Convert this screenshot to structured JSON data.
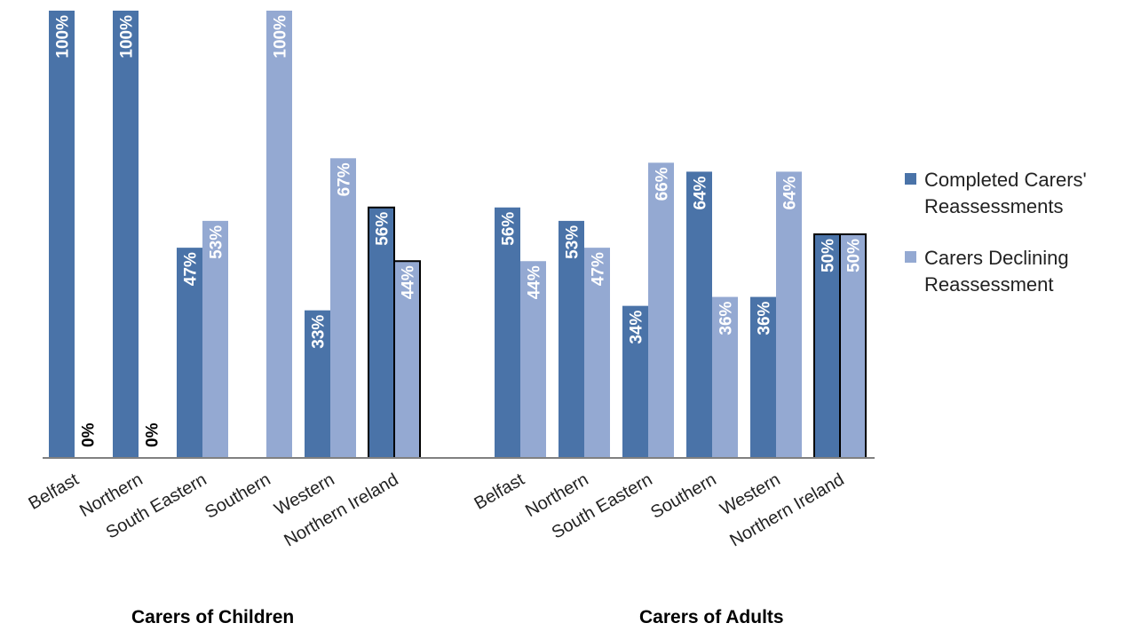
{
  "colors": {
    "completed": "#4a73a8",
    "declining": "#94a9d2",
    "axis": "#808080",
    "label_on_bar": "#ffffff",
    "label_zero": "#000000"
  },
  "chart_data": {
    "type": "bar",
    "y_range": [
      0,
      100
    ],
    "value_unit": "%",
    "grid": false,
    "legend_position": "right",
    "series": [
      {
        "name": "Completed Carers' Reassessments",
        "color": "#4a73a8"
      },
      {
        "name": "Carers Declining Reassessment",
        "color": "#94a9d2"
      }
    ],
    "groups": [
      {
        "title": "Carers of Children",
        "categories": [
          "Belfast",
          "Northern",
          "South Eastern",
          "Southern",
          "Western",
          "Northern Ireland"
        ],
        "completed": [
          100,
          100,
          47,
          null,
          33,
          56
        ],
        "declining": [
          0,
          0,
          53,
          100,
          67,
          44
        ],
        "completed_labels": [
          "100%",
          "100%",
          "47%",
          "",
          "33%",
          "56%"
        ],
        "declining_labels": [
          "0%",
          "0%",
          "53%",
          "100%",
          "67%",
          "44%"
        ]
      },
      {
        "title": "Carers of Adults",
        "categories": [
          "Belfast",
          "Northern",
          "South Eastern",
          "Southern",
          "Western",
          "Northern Ireland"
        ],
        "completed": [
          56,
          53,
          34,
          64,
          36,
          50
        ],
        "declining": [
          44,
          47,
          66,
          36,
          64,
          50
        ],
        "completed_labels": [
          "56%",
          "53%",
          "34%",
          "64%",
          "36%",
          "50%"
        ],
        "declining_labels": [
          "44%",
          "47%",
          "66%",
          "36%",
          "64%",
          "50%"
        ]
      }
    ]
  }
}
